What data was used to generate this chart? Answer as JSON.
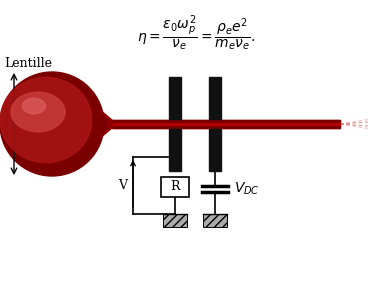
{
  "formula": "$\\eta = \\dfrac{\\epsilon_0 \\omega_p^2}{\\nu_e} = \\dfrac{\\rho_e e^2}{m_e \\nu_e}.$",
  "bg_color": "#ffffff",
  "lentille_label": "Lentille",
  "vdc_label": "$V_{DC}$",
  "v_label": "V",
  "r_label": "R",
  "plasma_dark": "#6B0000",
  "plasma_mid": "#9B1010",
  "plasma_light": "#C84040",
  "beam_color": "#BB0000",
  "electrode_color": "#111111"
}
